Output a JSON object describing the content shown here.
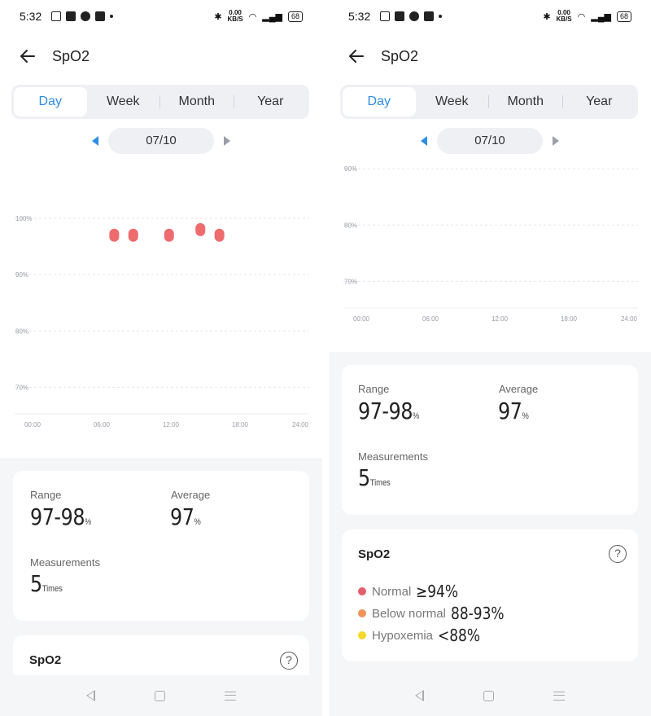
{
  "status": {
    "time": "5:32",
    "speed_value": "0.00",
    "speed_unit": "KB/S",
    "battery": "68"
  },
  "header": {
    "title": "SpO2"
  },
  "tabs": [
    {
      "label": "Day",
      "active": true
    },
    {
      "label": "Week",
      "active": false
    },
    {
      "label": "Month",
      "active": false
    },
    {
      "label": "Year",
      "active": false
    }
  ],
  "date": "07/10",
  "chart_data": {
    "type": "scatter",
    "title": "",
    "xlabel": "",
    "ylabel": "",
    "x_ticks": [
      "00:00",
      "06:00",
      "12:00",
      "18:00",
      "24:00"
    ],
    "y_ticks": [
      "100%",
      "90%",
      "80%",
      "70%"
    ],
    "ylim": [
      65,
      100
    ],
    "xlim": [
      0,
      24
    ],
    "series": [
      {
        "x": [
          7.3,
          9.0,
          12.2,
          15.0,
          16.7
        ],
        "y": [
          97,
          97,
          97,
          98,
          97
        ],
        "color": "#ee6b6e"
      }
    ]
  },
  "stats": {
    "range_label": "Range",
    "range_value": "97-98",
    "range_unit": "%",
    "average_label": "Average",
    "average_value": "97",
    "average_unit": "%",
    "measurements_label": "Measurements",
    "measurements_value": "5",
    "measurements_unit": "Times"
  },
  "spo2_card": {
    "title": "SpO2",
    "help": "?",
    "legend": [
      {
        "label": "Normal",
        "value": "≥94%",
        "color": "#e35d6a"
      },
      {
        "label": "Below normal",
        "value": "88-93%",
        "color": "#f0935a"
      },
      {
        "label": "Hypoxemia",
        "value": "<88%",
        "color": "#f5d82a"
      }
    ]
  }
}
